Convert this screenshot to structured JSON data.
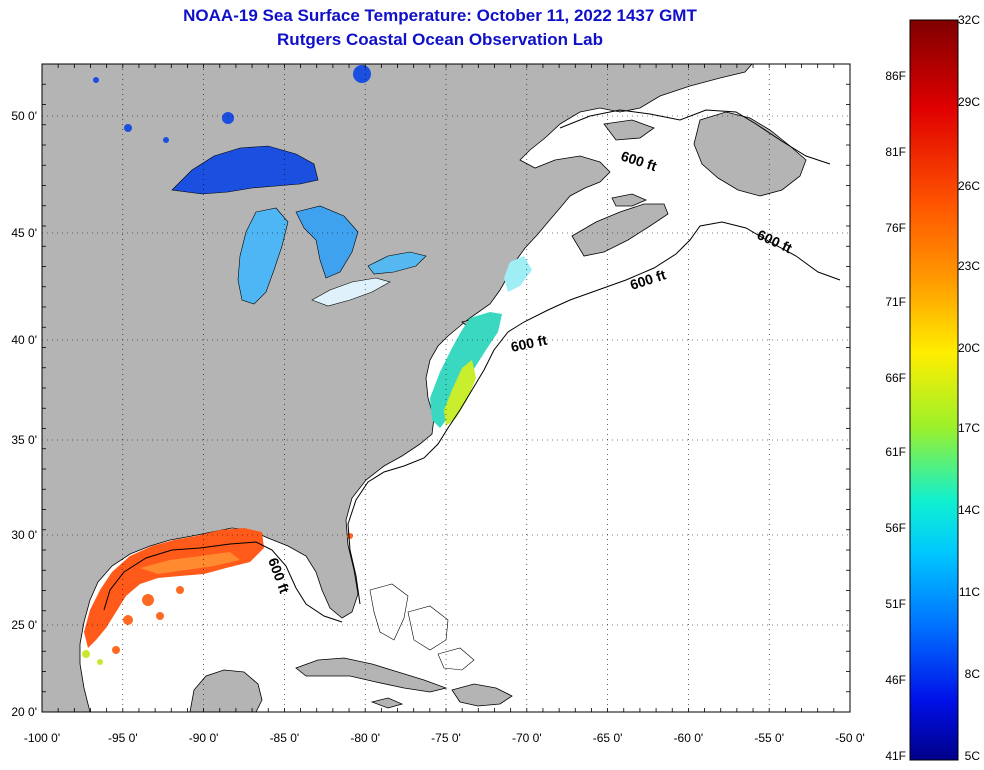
{
  "title": "NOAA-19 Sea Surface Temperature:  October 11, 2022 1437 GMT",
  "subtitle": "Rutgers Coastal Ocean Observation Lab",
  "lon_labels": [
    "-100 0'",
    "-95 0'",
    "-90 0'",
    "-85 0'",
    "-80 0'",
    "-75 0'",
    "-70 0'",
    "-65 0'",
    "-60 0'",
    "-55 0'",
    "-50 0'"
  ],
  "lat_labels": [
    "50 0'",
    "45 0'",
    "40 0'",
    "35 0'",
    "30 0'",
    "25 0'",
    "20 0'"
  ],
  "depth_labels": [
    "600 ft",
    "600 ft",
    "600 ft",
    "600 ft",
    "600 ft"
  ],
  "colorbar": {
    "celsius": [
      "32C",
      "29C",
      "26C",
      "23C",
      "20C",
      "17C",
      "14C",
      "11C",
      "8C",
      "5C"
    ],
    "fahrenheit": [
      "86F",
      "81F",
      "76F",
      "71F",
      "66F",
      "61F",
      "56F",
      "51F",
      "46F",
      "41F"
    ],
    "colors": [
      "#7f0000",
      "#d40000",
      "#ff4400",
      "#ff9900",
      "#ffee00",
      "#88ee33",
      "#00ffff",
      "#0090ff",
      "#0022ff",
      "#000088"
    ]
  },
  "colors": {
    "land": "#b4b4b4",
    "ocean": "#ffffff",
    "title": "#1010c8",
    "lake_deep": "#1a4fe0",
    "lake_light": "#4fb6f5",
    "gulf": "#ff5a1a"
  }
}
